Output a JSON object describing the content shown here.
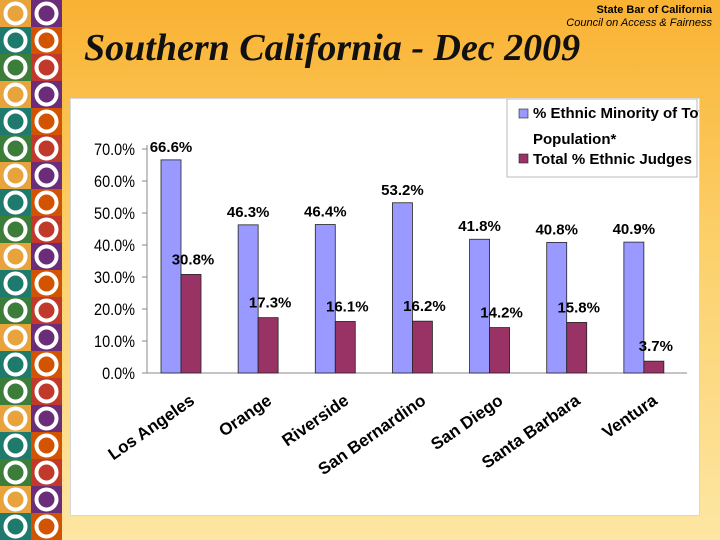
{
  "header": {
    "organization": "State Bar of California",
    "council": "Council on Access & Fairness"
  },
  "title": "Southern California - Dec 2009",
  "chart_data": {
    "type": "bar",
    "categories": [
      "Los Angeles",
      "Orange",
      "Riverside",
      "San Bernardino",
      "San Diego",
      "Santa Barbara",
      "Ventura"
    ],
    "series": [
      {
        "name": "% Ethnic Minority of Total Population*",
        "values": [
          66.6,
          46.3,
          46.4,
          53.2,
          41.8,
          40.8,
          40.9
        ],
        "color": "#9999ff"
      },
      {
        "name": "Total % Ethnic Judges",
        "values": [
          30.8,
          17.3,
          16.1,
          16.2,
          14.2,
          15.8,
          3.7
        ],
        "color": "#993366"
      }
    ],
    "value_labels": [
      [
        "66.6%",
        "46.3%",
        "46.4%",
        "53.2%",
        "41.8%",
        "40.8%",
        "40.9%"
      ],
      [
        "30.8%",
        "17.3%",
        "16.1%",
        "16.2%",
        "14.2%",
        "15.8%",
        "3.7%"
      ]
    ],
    "yticks": [
      "0.0%",
      "10.0%",
      "20.0%",
      "30.0%",
      "40.0%",
      "50.0%",
      "60.0%",
      "70.0%"
    ],
    "ylim": [
      0,
      70
    ],
    "legend_position": "top-right",
    "grid": false
  },
  "decor": {
    "tile_colors": [
      "#e8a33d",
      "#c0392b",
      "#1f7a6e",
      "#6b2d7a",
      "#3c7d3a",
      "#d35400"
    ],
    "ring_color": "#ffffff"
  }
}
